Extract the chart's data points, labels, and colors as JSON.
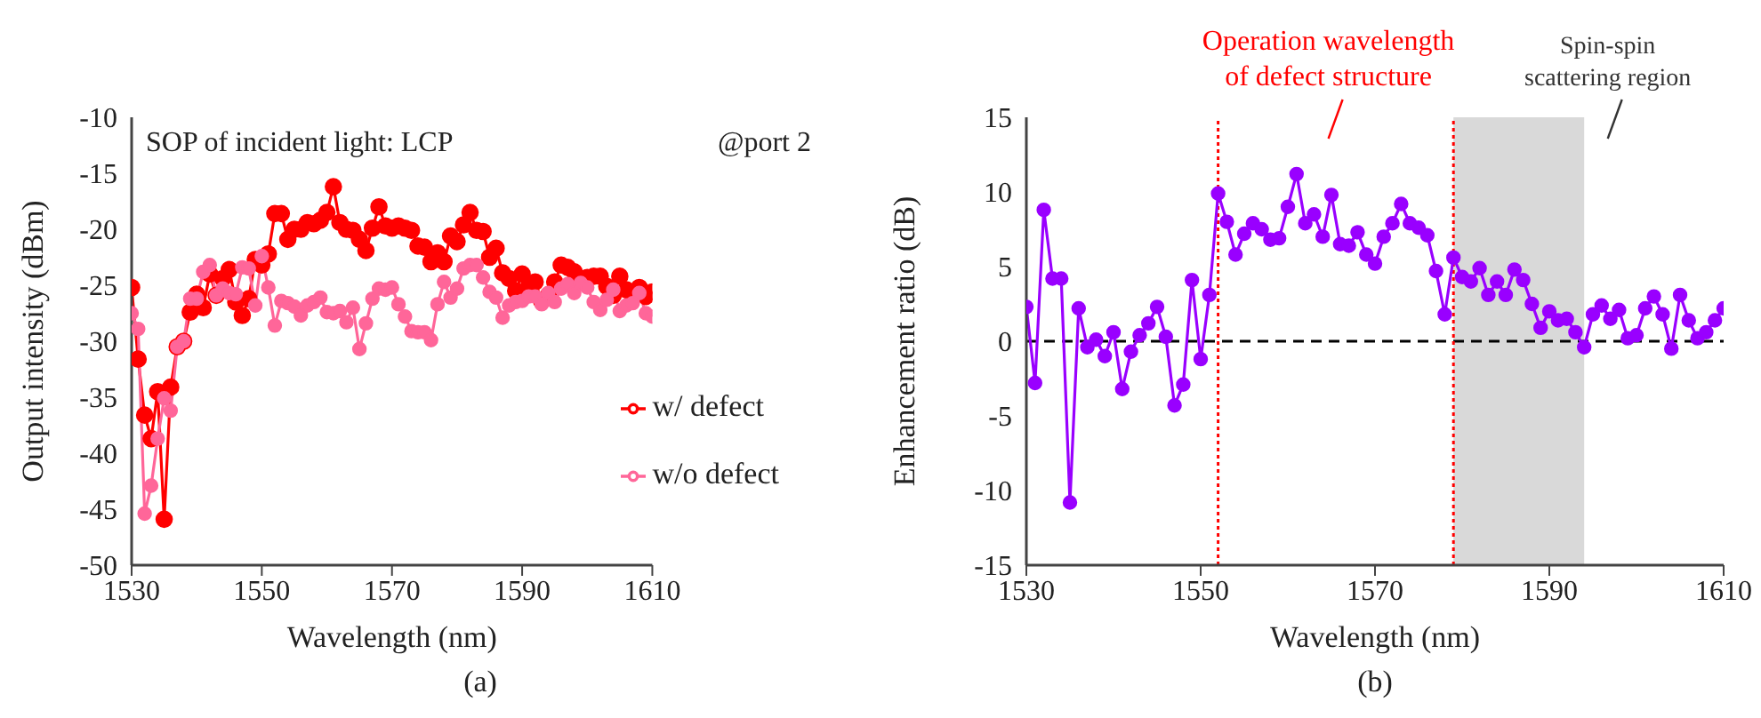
{
  "chart_data": [
    {
      "type": "line",
      "xlabel": "Wavelength (nm)",
      "ylabel": "Output intensity (dBm)",
      "x": [
        1530,
        1531,
        1532,
        1533,
        1534,
        1535,
        1536,
        1537,
        1538,
        1539,
        1540,
        1541,
        1542,
        1543,
        1544,
        1545,
        1546,
        1547,
        1548,
        1549,
        1550,
        1551,
        1552,
        1553,
        1554,
        1555,
        1556,
        1557,
        1558,
        1559,
        1560,
        1561,
        1562,
        1563,
        1564,
        1565,
        1566,
        1567,
        1568,
        1569,
        1570,
        1571,
        1572,
        1573,
        1574,
        1575,
        1576,
        1577,
        1578,
        1579,
        1580,
        1581,
        1582,
        1583,
        1584,
        1585,
        1586,
        1587,
        1588,
        1589,
        1590,
        1591,
        1592,
        1593,
        1594,
        1595,
        1596,
        1597,
        1598,
        1599,
        1600,
        1601,
        1602,
        1603,
        1604,
        1605,
        1606,
        1607,
        1608,
        1609,
        1610
      ],
      "series": [
        {
          "name": "w/ defect",
          "color": "#ff0000",
          "values": [
            -25.2,
            -31.6,
            -36.6,
            -38.7,
            -34.5,
            -45.9,
            -34.1,
            -30.5,
            -30.0,
            -27.4,
            -25.8,
            -27.0,
            -24.0,
            -25.9,
            -24.4,
            -23.6,
            -26.5,
            -27.7,
            -26.2,
            -22.7,
            -23.2,
            -22.2,
            -18.6,
            -18.6,
            -20.9,
            -20.0,
            -20.0,
            -19.4,
            -19.5,
            -19.2,
            -18.5,
            -16.2,
            -19.4,
            -20.0,
            -20.1,
            -20.9,
            -21.9,
            -19.9,
            -18.0,
            -19.7,
            -19.9,
            -19.7,
            -19.9,
            -20.1,
            -21.5,
            -21.6,
            -22.9,
            -22.1,
            -22.9,
            -20.6,
            -21.1,
            -19.6,
            -18.5,
            -20.1,
            -20.2,
            -22.5,
            -21.7,
            -23.9,
            -24.4,
            -25.5,
            -24.0,
            -25.1,
            -24.7,
            -26.4,
            -25.9,
            -24.7,
            -23.2,
            -23.4,
            -23.8,
            -24.5,
            -24.3,
            -24.2,
            -24.2,
            -25.1,
            -25.9,
            -24.2,
            -25.4,
            -26.0,
            -25.2,
            -26.0,
            -25.6
          ]
        },
        {
          "name": "w/o defect",
          "color": "#ff6699",
          "values": [
            -27.5,
            -28.9,
            -45.4,
            -42.9,
            -38.7,
            -35.1,
            -36.2,
            -30.5,
            -30.0,
            -26.2,
            -26.2,
            -23.8,
            -23.2,
            -25.9,
            -25.3,
            -25.7,
            -25.8,
            -23.4,
            -23.5,
            -26.8,
            -22.4,
            -25.2,
            -28.6,
            -26.4,
            -26.6,
            -26.9,
            -27.7,
            -26.8,
            -26.5,
            -26.1,
            -27.4,
            -27.5,
            -27.3,
            -28.3,
            -27.0,
            -30.7,
            -28.4,
            -26.2,
            -25.3,
            -25.4,
            -25.2,
            -26.7,
            -27.8,
            -29.1,
            -29.2,
            -29.2,
            -29.9,
            -26.7,
            -24.7,
            -26.1,
            -25.3,
            -23.5,
            -23.2,
            -23.2,
            -24.3,
            -25.6,
            -26.1,
            -27.9,
            -26.8,
            -26.5,
            -26.4,
            -26.0,
            -26.0,
            -26.7,
            -25.7,
            -26.5,
            -25.3,
            -24.9,
            -25.7,
            -24.8,
            -25.2,
            -26.5,
            -27.2,
            -26.3,
            -25.4,
            -27.3,
            -26.8,
            -26.6,
            -25.7,
            -27.5,
            -27.8
          ]
        }
      ],
      "xlim": [
        1530,
        1610
      ],
      "xticks": [
        1530,
        1550,
        1570,
        1590,
        1610
      ],
      "ylim": [
        -50,
        -10
      ],
      "yticks": [
        -50,
        -45,
        -40,
        -35,
        -30,
        -25,
        -20,
        -15,
        -10
      ],
      "marker": "circle",
      "legend": "bottom right",
      "annotations": [
        "SOP of incident light: LCP",
        "@port 2",
        "(a)"
      ]
    },
    {
      "type": "line",
      "xlabel": "Wavelength (nm)",
      "ylabel": "Enhancement ratio (dB)",
      "x": [
        1530,
        1531,
        1532,
        1533,
        1534,
        1535,
        1536,
        1537,
        1538,
        1539,
        1540,
        1541,
        1542,
        1543,
        1544,
        1545,
        1546,
        1547,
        1548,
        1549,
        1550,
        1551,
        1552,
        1553,
        1554,
        1555,
        1556,
        1557,
        1558,
        1559,
        1560,
        1561,
        1562,
        1563,
        1564,
        1565,
        1566,
        1567,
        1568,
        1569,
        1570,
        1571,
        1572,
        1573,
        1574,
        1575,
        1576,
        1577,
        1578,
        1579,
        1580,
        1581,
        1582,
        1583,
        1584,
        1585,
        1586,
        1587,
        1588,
        1589,
        1590,
        1591,
        1592,
        1593,
        1594,
        1595,
        1596,
        1597,
        1598,
        1599,
        1600,
        1601,
        1602,
        1603,
        1604,
        1605,
        1606,
        1607,
        1608,
        1609,
        1610
      ],
      "series": [
        {
          "color": "#9900ff",
          "values": [
            2.3,
            -2.8,
            8.8,
            4.2,
            4.2,
            -10.8,
            2.2,
            -0.4,
            0.1,
            -1.0,
            0.6,
            -3.2,
            -0.7,
            0.4,
            1.2,
            2.3,
            0.3,
            -4.3,
            -2.9,
            4.1,
            -1.2,
            3.1,
            9.9,
            8.0,
            5.8,
            7.2,
            7.9,
            7.5,
            6.8,
            6.9,
            9.0,
            11.2,
            7.9,
            8.5,
            7.0,
            9.8,
            6.5,
            6.4,
            7.3,
            5.8,
            5.2,
            7.0,
            7.9,
            9.2,
            7.9,
            7.6,
            7.1,
            4.7,
            1.8,
            5.6,
            4.3,
            4.0,
            4.9,
            3.1,
            4.0,
            3.1,
            4.8,
            4.1,
            2.5,
            0.9,
            2.0,
            1.4,
            1.5,
            0.6,
            -0.4,
            1.8,
            2.4,
            1.5,
            2.1,
            0.2,
            0.4,
            2.2,
            3.0,
            1.8,
            -0.5,
            3.1,
            1.4,
            0.2,
            0.6,
            1.4,
            2.2
          ]
        }
      ],
      "xlim": [
        1530,
        1610
      ],
      "xticks": [
        1530,
        1550,
        1570,
        1590,
        1610
      ],
      "ylim": [
        -15,
        15
      ],
      "yticks": [
        -15,
        -10,
        -5,
        0,
        5,
        10,
        15
      ],
      "marker": "circle",
      "legend": false,
      "ref_lines": [
        {
          "axis": "y",
          "value": 0,
          "color": "#000000",
          "line_style": "dashed"
        },
        {
          "axis": "x",
          "value": 1552,
          "color": "#ff0000",
          "line_style": "dotted",
          "label": "Operation wavelength of defect structure"
        },
        {
          "axis": "x",
          "value": 1579,
          "color": "#ff0000",
          "line_style": "dotted"
        }
      ],
      "bands": [
        {
          "axis": "x",
          "from": 1579,
          "to": 1594,
          "label": "Spin-spin scattering region",
          "color": "#d9d9d9"
        }
      ],
      "annotations": [
        "(b)"
      ]
    }
  ]
}
